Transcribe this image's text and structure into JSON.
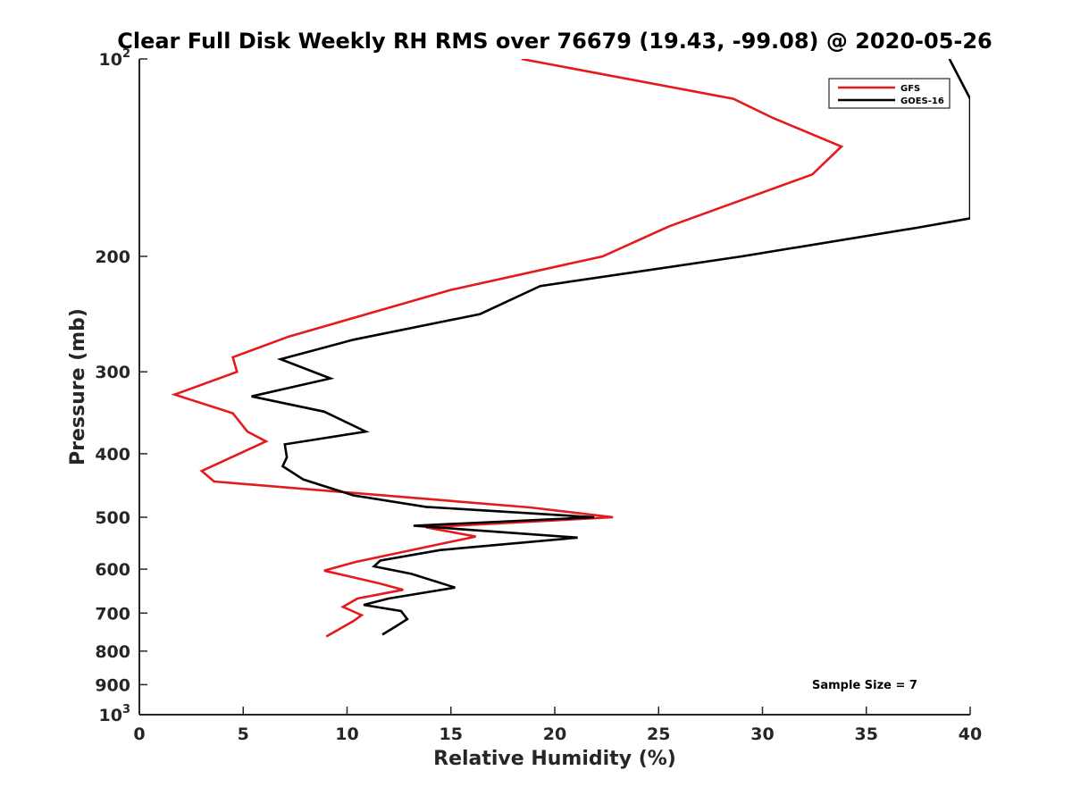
{
  "chart_data": {
    "type": "line",
    "title": "Clear Full Disk Weekly RH RMS over 76679 (19.43, -99.08) @ 2020-05-26",
    "xlabel": "Relative Humidity (%)",
    "ylabel": "Pressure (mb)",
    "xlim": [
      0,
      40
    ],
    "ylim": [
      100,
      1000
    ],
    "yscale": "log",
    "yreversed": true,
    "x_ticks": [
      "0",
      "5",
      "10",
      "15",
      "20",
      "25",
      "30",
      "35",
      "40"
    ],
    "y_ticks": [
      {
        "value": 100,
        "base": "10",
        "exp": "2"
      },
      {
        "value": 200,
        "label": "200"
      },
      {
        "value": 300,
        "label": "300"
      },
      {
        "value": 400,
        "label": "400"
      },
      {
        "value": 500,
        "label": "500"
      },
      {
        "value": 600,
        "label": "600"
      },
      {
        "value": 700,
        "label": "700"
      },
      {
        "value": 800,
        "label": "800"
      },
      {
        "value": 900,
        "label": "900"
      },
      {
        "value": 1000,
        "base": "10",
        "exp": "3"
      }
    ],
    "grid": false,
    "legend": "top-right",
    "annotation": "Sample Size = 7",
    "series": [
      {
        "name": "GFS",
        "color": "#e41a1c",
        "points": [
          [
            18.4,
            100
          ],
          [
            28.6,
            115
          ],
          [
            30.5,
            123
          ],
          [
            33.8,
            136
          ],
          [
            32.4,
            150
          ],
          [
            25.5,
            180
          ],
          [
            22.3,
            200
          ],
          [
            15.0,
            225
          ],
          [
            7.2,
            265
          ],
          [
            4.5,
            285
          ],
          [
            4.7,
            300
          ],
          [
            1.7,
            325
          ],
          [
            4.5,
            347
          ],
          [
            5.2,
            370
          ],
          [
            6.1,
            383
          ],
          [
            3.0,
            425
          ],
          [
            3.6,
            441
          ],
          [
            18.8,
            483
          ],
          [
            22.8,
            500
          ],
          [
            13.8,
            518
          ],
          [
            16.2,
            535
          ],
          [
            10.4,
            585
          ],
          [
            8.9,
            603
          ],
          [
            11.5,
            630
          ],
          [
            12.7,
            645
          ],
          [
            10.5,
            665
          ],
          [
            9.8,
            685
          ],
          [
            10.7,
            705
          ],
          [
            10.3,
            720
          ],
          [
            9.0,
            760
          ]
        ]
      },
      {
        "name": "GOES-16",
        "color": "#000000",
        "points": [
          [
            39.0,
            100
          ],
          [
            40.0,
            115
          ],
          [
            40.0,
            175
          ],
          [
            37.4,
            181
          ],
          [
            29.0,
            200
          ],
          [
            19.3,
            222
          ],
          [
            16.4,
            245
          ],
          [
            10.3,
            268
          ],
          [
            6.8,
            287
          ],
          [
            9.2,
            307
          ],
          [
            5.4,
            327
          ],
          [
            8.9,
            345
          ],
          [
            10.9,
            370
          ],
          [
            7.0,
            387
          ],
          [
            7.1,
            405
          ],
          [
            6.9,
            418
          ],
          [
            7.9,
            438
          ],
          [
            10.3,
            463
          ],
          [
            13.8,
            482
          ],
          [
            21.9,
            500
          ],
          [
            13.2,
            515
          ],
          [
            21.1,
            537
          ],
          [
            14.5,
            561
          ],
          [
            11.6,
            582
          ],
          [
            11.3,
            594
          ],
          [
            13.1,
            610
          ],
          [
            15.2,
            640
          ],
          [
            12.0,
            665
          ],
          [
            10.8,
            680
          ],
          [
            12.6,
            695
          ],
          [
            12.9,
            715
          ],
          [
            12.3,
            735
          ],
          [
            11.7,
            755
          ]
        ]
      }
    ]
  }
}
